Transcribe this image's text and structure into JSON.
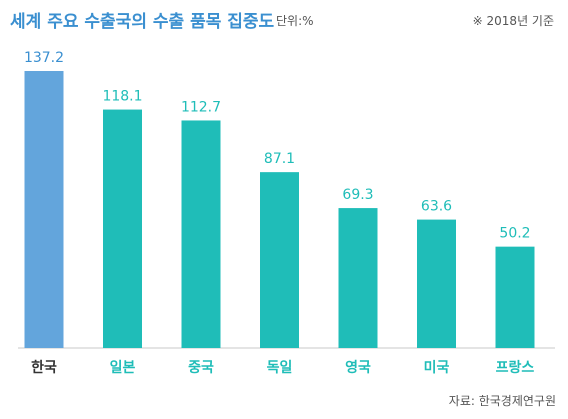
{
  "header": {
    "title": "세계 주요 수출국의 수출 품목 집중도",
    "unit": "단위:%",
    "note": "※ 2018년 기준"
  },
  "footer": {
    "source": "자료: 한국경제연구원"
  },
  "colors": {
    "highlight": "#63a5dc",
    "bar": "#1fbdb8",
    "highlight_label": "#3a8fd0",
    "axis": "#c8c8c8",
    "category_text": "#333333"
  },
  "chart_data": {
    "type": "bar",
    "categories": [
      "한국",
      "일본",
      "중국",
      "독일",
      "영국",
      "미국",
      "프랑스"
    ],
    "values": [
      137.2,
      118.1,
      112.7,
      87.1,
      69.3,
      63.6,
      50.2
    ],
    "value_labels": [
      "137.2",
      "118.1",
      "112.7",
      "87.1",
      "69.3",
      "63.6",
      "50.2"
    ],
    "highlight_index": 0,
    "ylim": [
      0,
      137.2
    ],
    "grid": false,
    "legend": "none"
  }
}
